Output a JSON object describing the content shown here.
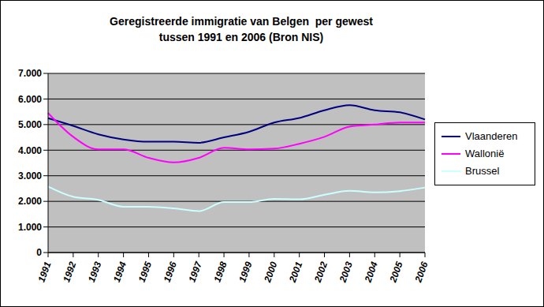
{
  "chart_data": {
    "type": "line",
    "title": "Geregistreerde immigratie van Belgen  per gewest\ntussen 1991 en 2006 (Bron NIS)",
    "categories": [
      "1991",
      "1992",
      "1993",
      "1994",
      "1995",
      "1996",
      "1997",
      "1998",
      "1999",
      "2000",
      "2001",
      "2002",
      "2003",
      "2004",
      "2005",
      "2006"
    ],
    "series": [
      {
        "name": "Vlaanderen",
        "color": "#000080",
        "values": [
          5250,
          4950,
          4620,
          4420,
          4330,
          4330,
          4290,
          4500,
          4720,
          5080,
          5260,
          5560,
          5760,
          5560,
          5480,
          5200
        ]
      },
      {
        "name": "Wallonië",
        "color": "#ff00ff",
        "values": [
          5450,
          4520,
          4030,
          4030,
          3700,
          3520,
          3700,
          4090,
          4030,
          4060,
          4250,
          4520,
          4920,
          5000,
          5080,
          5080
        ]
      },
      {
        "name": "Brussel",
        "color": "#ccffff",
        "values": [
          2580,
          2180,
          2060,
          1790,
          1790,
          1730,
          1620,
          1970,
          1970,
          2100,
          2080,
          2260,
          2410,
          2350,
          2400,
          2540
        ]
      }
    ],
    "ylim": [
      0,
      7000
    ],
    "yticks": [
      0,
      {
        "value": 1000,
        "label": "1.000"
      },
      {
        "value": 2000,
        "label": "2.000"
      },
      {
        "value": 3000,
        "label": "3.000"
      },
      {
        "value": 4000,
        "label": "4.000"
      },
      {
        "value": 5000,
        "label": "5.000"
      },
      {
        "value": 6000,
        "label": "6.000"
      },
      {
        "value": 7000,
        "label": "7.000"
      }
    ],
    "grid": true,
    "legend": "right"
  }
}
